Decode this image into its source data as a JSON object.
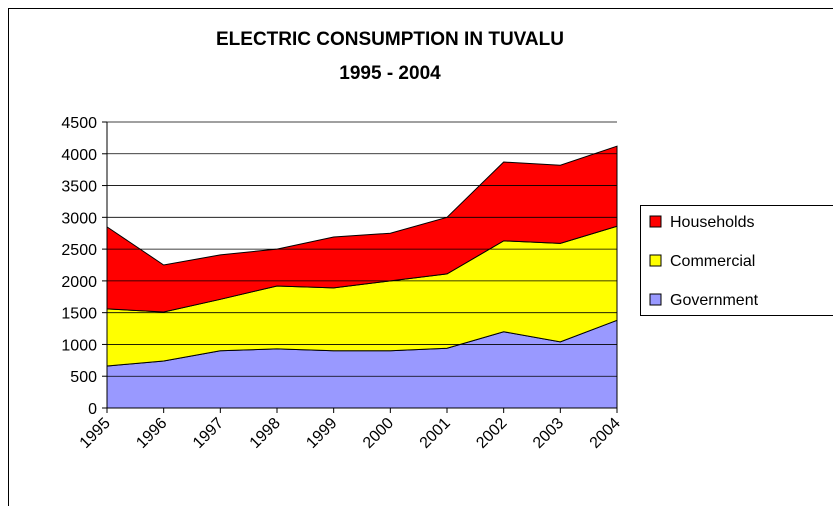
{
  "chart_data": {
    "type": "stacked_area",
    "title_lines": [
      "ELECTRIC CONSUMPTION IN TUVALU",
      "1995 - 2004"
    ],
    "categories": [
      "1995",
      "1996",
      "1997",
      "1998",
      "1999",
      "2000",
      "2001",
      "2002",
      "2003",
      "2004"
    ],
    "series": [
      {
        "name": "Government",
        "color": "#9999ff",
        "values": [
          660,
          740,
          900,
          930,
          900,
          900,
          940,
          1200,
          1040,
          1380
        ]
      },
      {
        "name": "Commercial",
        "color": "#ffff00",
        "values": [
          900,
          770,
          810,
          990,
          990,
          1100,
          1170,
          1430,
          1550,
          1480
        ]
      },
      {
        "name": "Households",
        "color": "#ff0000",
        "values": [
          1290,
          740,
          700,
          580,
          800,
          750,
          890,
          1240,
          1230,
          1260
        ]
      }
    ],
    "ylim": [
      0,
      4500
    ],
    "yticks": [
      0,
      500,
      1000,
      1500,
      2000,
      2500,
      3000,
      3500,
      4000,
      4500
    ],
    "grid": true,
    "legend": "right"
  }
}
